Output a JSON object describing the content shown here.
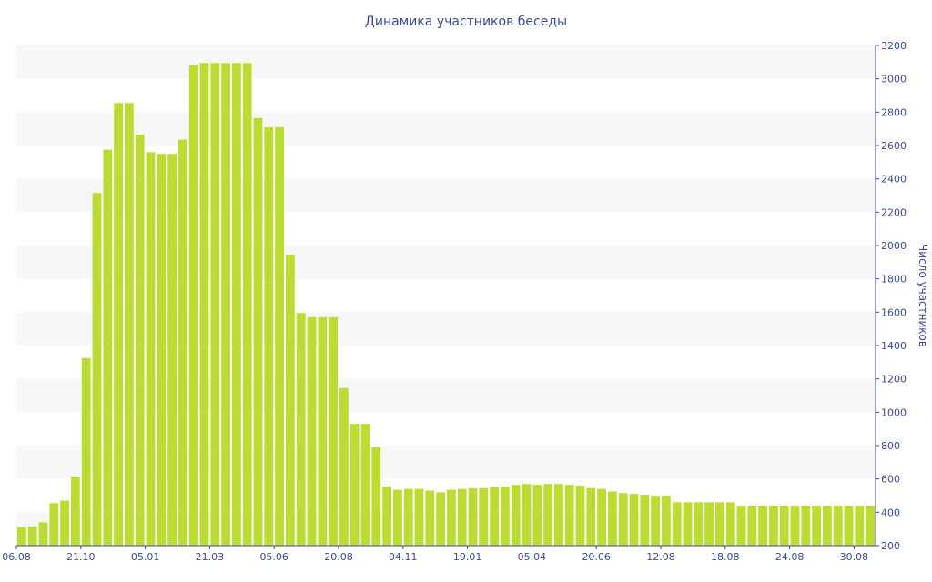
{
  "chart_data": {
    "type": "bar",
    "title": "Динамика участников беседы",
    "xlabel": "",
    "ylabel": "Число участников",
    "y_axis_position": "right",
    "ylim": [
      200,
      3200
    ],
    "yticks": [
      200,
      400,
      600,
      800,
      1000,
      1200,
      1400,
      1600,
      1800,
      2000,
      2200,
      2400,
      2600,
      2800,
      3000,
      3200
    ],
    "grid": "alternating horizontal bands",
    "bar_color": "#bbdd33",
    "band_color": "#f7f7f7",
    "text_color": "#3c4a8c",
    "x_tick_labels": [
      {
        "index": 0,
        "label": "06.08"
      },
      {
        "index": 6,
        "label": "21.10"
      },
      {
        "index": 12,
        "label": "05.01"
      },
      {
        "index": 18,
        "label": "21.03"
      },
      {
        "index": 24,
        "label": "05.06"
      },
      {
        "index": 30,
        "label": "20.08"
      },
      {
        "index": 36,
        "label": "04.11"
      },
      {
        "index": 42,
        "label": "19.01"
      },
      {
        "index": 48,
        "label": "05.04"
      },
      {
        "index": 54,
        "label": "20.06"
      },
      {
        "index": 60,
        "label": "12.08"
      },
      {
        "index": 66,
        "label": "18.08"
      },
      {
        "index": 72,
        "label": "24.08"
      },
      {
        "index": 78,
        "label": "30.08"
      }
    ],
    "values": [
      310,
      315,
      340,
      455,
      470,
      615,
      1325,
      2315,
      2575,
      2855,
      2855,
      2665,
      2560,
      2550,
      2550,
      2635,
      3085,
      3095,
      3095,
      3095,
      3095,
      3095,
      2765,
      2710,
      2710,
      1945,
      1595,
      1570,
      1570,
      1570,
      1145,
      930,
      930,
      790,
      555,
      535,
      540,
      540,
      530,
      520,
      535,
      540,
      545,
      545,
      550,
      555,
      565,
      570,
      565,
      570,
      570,
      565,
      560,
      545,
      540,
      525,
      515,
      510,
      505,
      500,
      500,
      460,
      460,
      460,
      460,
      460,
      460,
      440,
      440,
      440,
      440,
      440,
      440,
      440,
      440,
      440,
      440,
      440,
      440,
      440
    ]
  }
}
